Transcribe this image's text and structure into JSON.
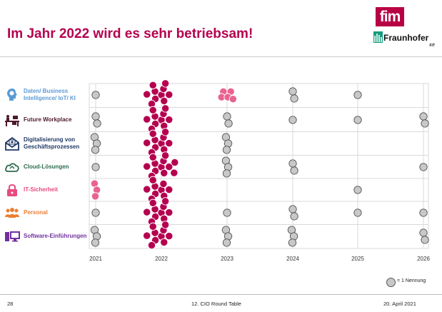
{
  "slide": {
    "title": "Im Jahr 2022 wird es sehr betriebsam!",
    "logo_fim": "fim",
    "logo_fraunhofer": "Fraunhofer",
    "logo_fraunhofer_sub": "FIT",
    "footer_page": "28",
    "footer_event": "12. CIO Round Table",
    "footer_date": "20. April 2021"
  },
  "categories": [
    {
      "label": "Daten/ Business Intelligence/ IoT/ KI",
      "color": "#5b9bd5",
      "icon": "lightbulb-head-icon"
    },
    {
      "label": "Future Workplace",
      "color": "#4d1a2a",
      "icon": "desk-icon"
    },
    {
      "label": "Digitalisierung von Geschäftsprozessen",
      "color": "#1f3864",
      "icon": "envelope-icon"
    },
    {
      "label": "Cloud-Lösungen",
      "color": "#2d6a4f",
      "icon": "cloud-icon"
    },
    {
      "label": "IT-Sicherheit",
      "color": "#e84a7f",
      "icon": "lock-icon"
    },
    {
      "label": "Personal",
      "color": "#ed7d31",
      "icon": "people-icon"
    },
    {
      "label": "Software-Einführungen",
      "color": "#7030a0",
      "icon": "computer-icon"
    }
  ],
  "legend": {
    "text": "= 1 Nennung",
    "color": "#c8c8c8"
  },
  "chart_data": {
    "type": "scatter",
    "title": "",
    "x_categories": [
      "2021",
      "2022",
      "2023",
      "2024",
      "2025",
      "2026"
    ],
    "y_categories": [
      "Daten/ Business Intelligence/ IoT/ KI",
      "Future Workplace",
      "Digitalisierung von Geschäftsprozessen",
      "Cloud-Lösungen",
      "IT-Sicherheit",
      "Personal",
      "Software-Einführungen"
    ],
    "marker_meaning": "= 1 Nennung",
    "colors": {
      "standard": "#c8c8c8",
      "highlight_2022": "#b5004f",
      "highlight_pink": "#e8648f"
    },
    "counts": [
      [
        1,
        10,
        5,
        2,
        1,
        0
      ],
      [
        2,
        10,
        2,
        1,
        1,
        2
      ],
      [
        3,
        10,
        3,
        0,
        0,
        0
      ],
      [
        1,
        12,
        3,
        2,
        0,
        1
      ],
      [
        3,
        9,
        0,
        0,
        1,
        0
      ],
      [
        1,
        10,
        1,
        2,
        1,
        1
      ],
      [
        3,
        10,
        3,
        3,
        0,
        2
      ]
    ],
    "highlight": [
      [
        false,
        true,
        true,
        false,
        false,
        false
      ],
      [
        false,
        true,
        false,
        false,
        false,
        false
      ],
      [
        false,
        true,
        false,
        false,
        false,
        false
      ],
      [
        false,
        true,
        false,
        false,
        false,
        false
      ],
      [
        true,
        true,
        false,
        false,
        false,
        false
      ],
      [
        false,
        true,
        false,
        false,
        false,
        false
      ],
      [
        false,
        true,
        false,
        false,
        false,
        false
      ]
    ]
  }
}
